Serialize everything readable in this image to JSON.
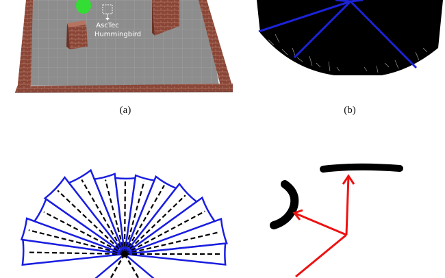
{
  "figure": {
    "panels": [
      {
        "id": "a",
        "caption": "(a)",
        "description_label": "AscTec\nHummingbird"
      },
      {
        "id": "b",
        "caption": "(b)"
      },
      {
        "id": "c",
        "caption": ""
      },
      {
        "id": "d",
        "caption": ""
      }
    ],
    "label_line1": "AscTec",
    "label_line2": "Hummingbird",
    "caption_a": "(a)",
    "caption_b": "(b)",
    "colors": {
      "floor": "#8c8c8c",
      "wall": "#7a3f34",
      "robot": "#33dd33",
      "ray_edge": "#1c23d6",
      "sector_edge": "#1a1ee0",
      "arrow": "#ee1111"
    }
  }
}
